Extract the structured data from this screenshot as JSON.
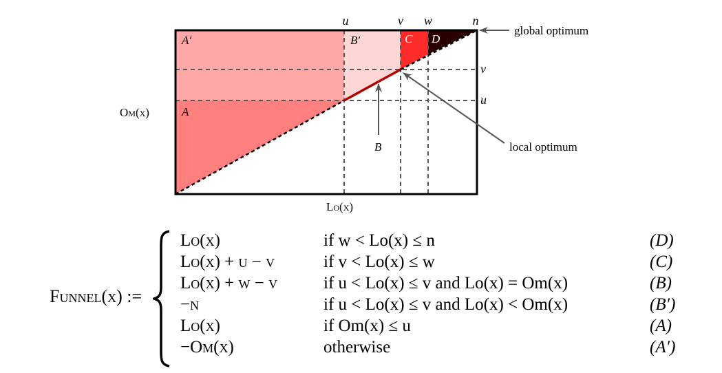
{
  "labels": {
    "u": "u",
    "v": "v",
    "w": "w",
    "n": "n",
    "global_optimum": "global optimum",
    "local_optimum": "local optimum",
    "region_A": "A",
    "region_A_prime": "A′",
    "region_B": "B",
    "region_B_prime": "B′",
    "region_C": "C",
    "region_D": "D",
    "y_axis": "Om(x)",
    "x_axis": "Lo(x)"
  },
  "colors": {
    "region_A": "#ff7f7f",
    "region_A_prime": "#ffa8a8",
    "region_B_prime": "#ffd6d6",
    "region_C": "#ff2a2a",
    "region_D": "#2a0000",
    "path_B": "#b00000"
  },
  "formula": {
    "lhs": "Funnel(x) :=",
    "rows": [
      {
        "value": "Lo(x)",
        "condition": "if w < Lo(x) ≤ n",
        "tag": "(D)"
      },
      {
        "value": "Lo(x) + u − v",
        "condition": "if v < Lo(x) ≤ w",
        "tag": "(C)"
      },
      {
        "value": "Lo(x) + w − v",
        "condition": "if u < Lo(x) ≤ v and Lo(x) = Om(x)",
        "tag": "(B)"
      },
      {
        "value": "−n",
        "condition": "if u < Lo(x) ≤ v and Lo(x) < Om(x)",
        "tag": "(B′)"
      },
      {
        "value": "Lo(x)",
        "condition": "if Om(x) ≤ u",
        "tag": "(A)"
      },
      {
        "value": "−Om(x)",
        "condition": "otherwise",
        "tag": "(A′)"
      }
    ]
  }
}
